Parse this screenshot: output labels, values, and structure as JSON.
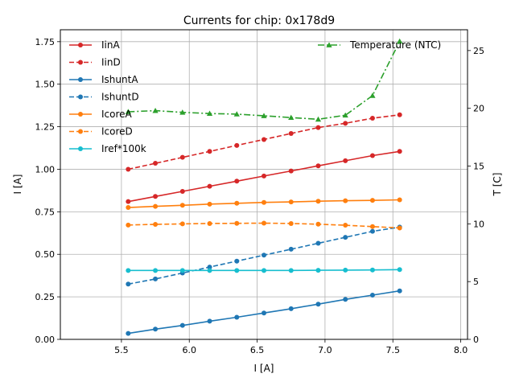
{
  "chart_data": {
    "type": "line",
    "title": "Currents for chip: 0x178d9",
    "xlabel": "I [A]",
    "ylabel": "I [A]",
    "y2label": "T [C]",
    "xlim": [
      5.05,
      8.05
    ],
    "ylim": [
      0.0,
      1.82
    ],
    "y2lim": [
      0,
      26.8
    ],
    "xticks": [
      "5.5",
      "6.0",
      "6.5",
      "7.0",
      "7.5",
      "8.0"
    ],
    "yticks": [
      "0.00",
      "0.25",
      "0.50",
      "0.75",
      "1.00",
      "1.25",
      "1.50",
      "1.75"
    ],
    "y2ticks": [
      "0",
      "5",
      "10",
      "15",
      "20",
      "25"
    ],
    "grid": true,
    "x": [
      5.55,
      5.75,
      5.95,
      6.15,
      6.35,
      6.55,
      6.75,
      6.95,
      7.15,
      7.35,
      7.55
    ],
    "series": [
      {
        "name": "IinA",
        "color": "#d62728",
        "dash": "solid",
        "marker": "circle",
        "axis": "left",
        "values": [
          0.81,
          0.84,
          0.87,
          0.9,
          0.93,
          0.96,
          0.99,
          1.02,
          1.05,
          1.08,
          1.105
        ]
      },
      {
        "name": "IinD",
        "color": "#d62728",
        "dash": "dashed",
        "marker": "circle",
        "axis": "left",
        "values": [
          1.0,
          1.035,
          1.07,
          1.105,
          1.14,
          1.175,
          1.21,
          1.245,
          1.27,
          1.3,
          1.32
        ]
      },
      {
        "name": "IshuntA",
        "color": "#1f77b4",
        "dash": "solid",
        "marker": "circle",
        "axis": "left",
        "values": [
          0.035,
          0.06,
          0.082,
          0.107,
          0.13,
          0.155,
          0.18,
          0.207,
          0.235,
          0.26,
          0.285
        ]
      },
      {
        "name": "IshuntD",
        "color": "#1f77b4",
        "dash": "dashed",
        "marker": "circle",
        "axis": "left",
        "values": [
          0.325,
          0.355,
          0.39,
          0.425,
          0.46,
          0.495,
          0.53,
          0.565,
          0.6,
          0.635,
          0.66
        ]
      },
      {
        "name": "IcoreA",
        "color": "#ff7f0e",
        "dash": "solid",
        "marker": "circle",
        "axis": "left",
        "values": [
          0.775,
          0.782,
          0.788,
          0.795,
          0.8,
          0.805,
          0.808,
          0.812,
          0.815,
          0.817,
          0.82
        ]
      },
      {
        "name": "IcoreD",
        "color": "#ff7f0e",
        "dash": "dashed",
        "marker": "circle",
        "axis": "left",
        "values": [
          0.672,
          0.676,
          0.679,
          0.681,
          0.682,
          0.683,
          0.681,
          0.677,
          0.671,
          0.663,
          0.655
        ]
      },
      {
        "name": "Iref*100k",
        "color": "#17becf",
        "dash": "solid",
        "marker": "circle",
        "axis": "left",
        "values": [
          0.405,
          0.405,
          0.405,
          0.405,
          0.405,
          0.405,
          0.405,
          0.406,
          0.407,
          0.408,
          0.41
        ]
      },
      {
        "name": "Temperature (NTC)",
        "color": "#2ca02c",
        "dash": "dashdot",
        "marker": "triangle",
        "axis": "right",
        "values": [
          19.7,
          19.8,
          19.65,
          19.55,
          19.5,
          19.35,
          19.2,
          19.05,
          19.4,
          21.1,
          25.8
        ]
      }
    ],
    "legend_left_position": "top-left",
    "legend_right_position": "top-right"
  }
}
